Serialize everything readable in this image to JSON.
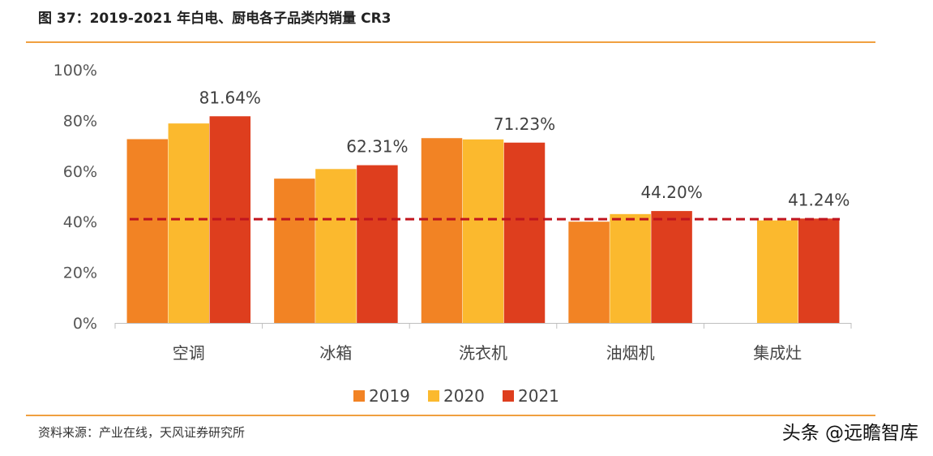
{
  "figure": {
    "title": "图 37：2019-2021 年白电、厨电各子品类内销量 CR3",
    "source": "资料来源：产业在线，天风证券研究所",
    "watermark": "头条 @远瞻智库"
  },
  "chart_data": {
    "type": "bar",
    "categories": [
      "空调",
      "冰箱",
      "洗衣机",
      "油烟机",
      "集成灶"
    ],
    "series": [
      {
        "name": "2019",
        "color": "#F28324",
        "values": [
          72.6,
          57.0,
          73.0,
          40.0,
          null
        ]
      },
      {
        "name": "2020",
        "color": "#FBB92E",
        "values": [
          78.8,
          60.8,
          72.5,
          43.0,
          40.5
        ]
      },
      {
        "name": "2021",
        "color": "#DE3E1E",
        "values": [
          81.64,
          62.31,
          71.23,
          44.2,
          41.24
        ]
      }
    ],
    "data_labels": [
      {
        "category": "空调",
        "series": "2021",
        "text": "81.64%"
      },
      {
        "category": "冰箱",
        "series": "2021",
        "text": "62.31%"
      },
      {
        "category": "洗衣机",
        "series": "2021",
        "text": "71.23%"
      },
      {
        "category": "油烟机",
        "series": "2021",
        "text": "44.20%"
      },
      {
        "category": "集成灶",
        "series": "2021",
        "text": "41.24%"
      }
    ],
    "reference_line": {
      "value": 41.0,
      "style": "dashed",
      "color": "#C0141E"
    },
    "y_ticks": [
      "0%",
      "20%",
      "40%",
      "60%",
      "80%",
      "100%"
    ],
    "ylim": [
      0,
      100
    ],
    "grid": false,
    "legend_position": "bottom-center"
  }
}
